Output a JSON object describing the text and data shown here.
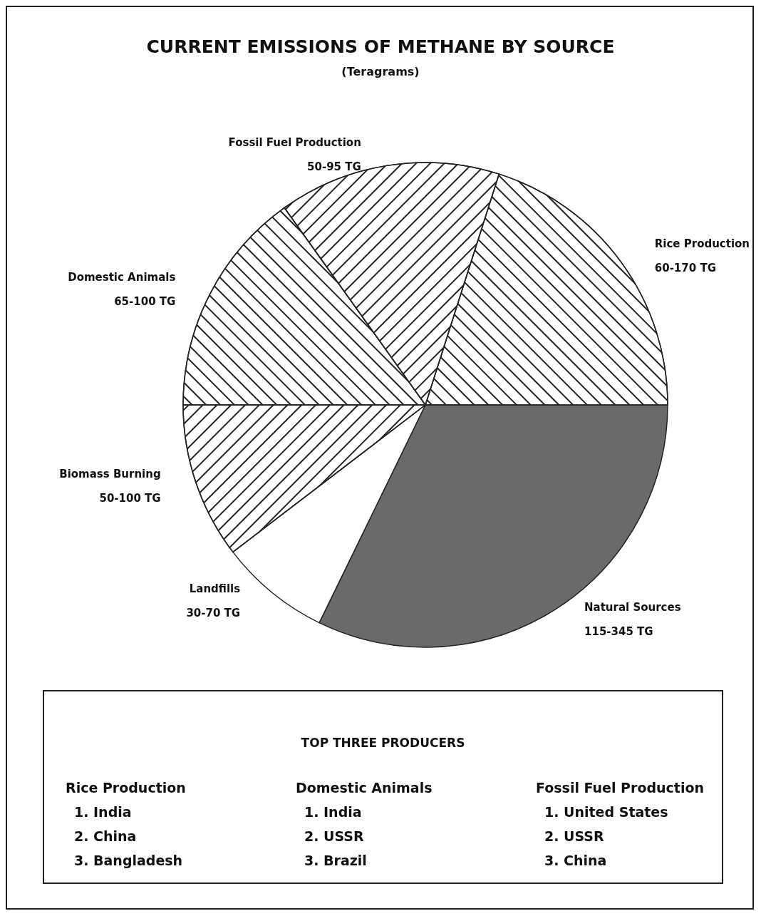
{
  "chart_data": [
    {
      "type": "pie",
      "title": "CURRENT EMISSIONS OF METHANE BY SOURCE",
      "subtitle": "(Teragrams)",
      "categories": [
        "Rice Production",
        "Natural Sources",
        "Landfills",
        "Biomass Burning",
        "Domestic Animals",
        "Fossil Fuel Production"
      ],
      "values": [
        20.1,
        32.2,
        7.4,
        10.4,
        15.1,
        14.8
      ],
      "value_labels": [
        "60-170 TG",
        "115-345 TG",
        "30-70 TG",
        "50-100 TG",
        "65-100 TG",
        "50-95 TG"
      ],
      "colors": [
        "#ffffff",
        "#6a6a6a",
        "#ffffff",
        "#ffffff",
        "#ffffff",
        "#ffffff"
      ],
      "legend": false
    },
    {
      "type": "other",
      "title": "TOP THREE PRODUCERS",
      "annotations": [
        "Rice Production",
        "1. India",
        "2. China",
        "3. Bangladesh",
        "Domestic Animals",
        "1. India",
        "2. USSR",
        "3. Brazil",
        "Fossil Fuel Production",
        "1. United States",
        "2. USSR",
        "3. China"
      ]
    }
  ]
}
